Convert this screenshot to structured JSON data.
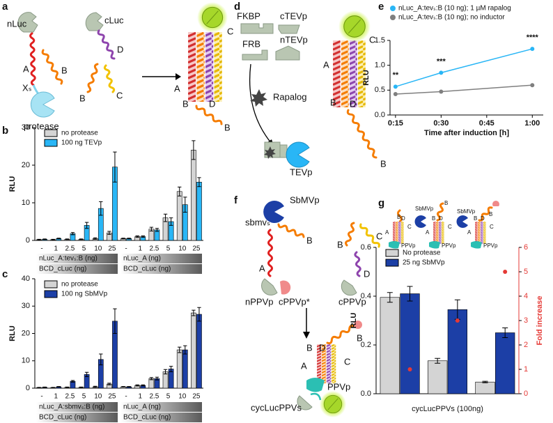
{
  "panels": [
    "a",
    "b",
    "c",
    "d",
    "e",
    "f",
    "g"
  ],
  "diagrams": {
    "a": {
      "labels": [
        "nLuc",
        "A",
        "B",
        "Xₛ",
        "protease",
        "cLuc",
        "D",
        "B",
        "C",
        "C",
        "A",
        "B",
        "D",
        "B"
      ]
    },
    "d": {
      "labels": [
        "FKBP",
        "cTEVp",
        "FRB",
        "nTEVp",
        "Rapalog",
        "TEVp",
        "C",
        "A",
        "B",
        "D",
        "B"
      ]
    },
    "f": {
      "labels": [
        "SbMVp",
        "sbmvₛ",
        "A",
        "B",
        "nPPVp",
        "cPPVp*",
        "B",
        "C",
        "D",
        "cPPVp",
        "B",
        "B",
        "D",
        "C",
        "A",
        "PPVp",
        "cycLucPPVs"
      ]
    },
    "g": {
      "labels": [
        "B",
        "D",
        "C",
        "A",
        "PPVp",
        "SbMVp",
        "B",
        "B",
        "D",
        "C",
        "A",
        "PPVp",
        "SbMVp",
        "B",
        "B",
        "D",
        "C",
        "A",
        "PPVp"
      ]
    }
  },
  "chart_data": [
    {
      "type": "bar",
      "ylabel": "RLU",
      "categories": [
        "-",
        "1",
        "2.5",
        "5",
        "10",
        "25",
        "-",
        "1",
        "2.5",
        "5",
        "10",
        "25"
      ],
      "group_labels": [
        [
          "nLuc_A:tevₛ:B (ng)",
          "BCD_cLuc (ng)"
        ],
        [
          "nLuc_A (ng)",
          "BCD_cLuc (ng)"
        ]
      ],
      "series": [
        {
          "name": "no protease",
          "color": "#d4d4d4",
          "values": [
            0.2,
            0.2,
            0.3,
            0.3,
            0.5,
            2.0,
            0.5,
            1.0,
            3.0,
            6.0,
            13.0,
            24.0
          ],
          "errors": [
            0.1,
            0.1,
            0.1,
            0.1,
            0.2,
            0.4,
            0.1,
            0.2,
            0.5,
            1.0,
            1.2,
            2.5
          ]
        },
        {
          "name": "100 ng TEVp",
          "color": "#29b6f6",
          "values": [
            0.3,
            0.5,
            1.8,
            4.0,
            8.5,
            19.5,
            0.5,
            1.0,
            2.8,
            5.0,
            9.5,
            15.5
          ],
          "errors": [
            0.1,
            0.1,
            0.3,
            0.8,
            1.8,
            4.0,
            0.1,
            0.2,
            0.4,
            1.0,
            2.0,
            1.2
          ]
        }
      ],
      "ylim": [
        0,
        30
      ],
      "yticks": [
        0,
        10,
        20,
        30
      ],
      "legend": "upper left"
    },
    {
      "type": "bar",
      "ylabel": "RLU",
      "categories": [
        "-",
        "1",
        "2.5",
        "5",
        "10",
        "25",
        "-",
        "1",
        "2.5",
        "5",
        "10",
        "25"
      ],
      "group_labels": [
        [
          "nLuc_A:sbmvₛ:B (ng)",
          "BCD_cLuc (ng)"
        ],
        [
          "nLuc_A (ng)",
          "BCD_cLuc (ng)"
        ]
      ],
      "series": [
        {
          "name": "no protease",
          "color": "#d4d4d4",
          "values": [
            0.2,
            0.2,
            0.3,
            0.3,
            0.5,
            1.5,
            0.5,
            1.0,
            3.5,
            6.0,
            14.0,
            27.5
          ],
          "errors": [
            0.1,
            0.1,
            0.1,
            0.1,
            0.2,
            0.3,
            0.1,
            0.2,
            0.4,
            0.8,
            1.0,
            1.0
          ]
        },
        {
          "name": "100 ng SbMVp",
          "color": "#1c3fa6",
          "values": [
            0.3,
            0.5,
            2.5,
            5.0,
            10.5,
            24.5,
            0.5,
            1.0,
            3.5,
            7.0,
            14.0,
            27.0
          ],
          "errors": [
            0.1,
            0.1,
            0.3,
            0.8,
            2.0,
            4.5,
            0.1,
            0.2,
            0.5,
            1.0,
            1.5,
            2.5
          ]
        }
      ],
      "ylim": [
        0,
        40
      ],
      "yticks": [
        0,
        10,
        20,
        30,
        40
      ],
      "legend": "upper left"
    },
    {
      "type": "line",
      "xlabel": "Time after induction [h]",
      "ylabel": "RLU",
      "x": [
        0.25,
        0.5,
        1.0
      ],
      "series": [
        {
          "name": "nLuc_A:tevₛ:B (10 ng); 1 µM rapalog",
          "color": "#29b6f6",
          "values": [
            0.57,
            0.85,
            1.33
          ]
        },
        {
          "name": "nLuc_A:tevₛ:B (10 ng); no inductor",
          "color": "#7f7f7f",
          "values": [
            0.42,
            0.47,
            0.6
          ]
        }
      ],
      "annotations": [
        "**",
        "***",
        "****"
      ],
      "xlim": [
        0.22,
        1.06
      ],
      "xticks": [
        {
          "value": 0.25,
          "label": "0:15"
        },
        {
          "value": 0.5,
          "label": "0:30"
        },
        {
          "value": 0.75,
          "label": "0:45"
        },
        {
          "value": 1.0,
          "label": "1:00"
        }
      ],
      "ylim": [
        0,
        1.5
      ],
      "yticks": [
        {
          "value": 0,
          "label": "0.0"
        },
        {
          "value": 0.5,
          "label": "0.5"
        },
        {
          "value": 1.0,
          "label": "1.0"
        },
        {
          "value": 1.5,
          "label": "1.5"
        }
      ],
      "legend": "top"
    },
    {
      "type": "bar",
      "xlabel": "cycLucPPVs (100ng)",
      "ylabel": "RLU",
      "y2label": "Fold increase",
      "categories": [
        null,
        null,
        null
      ],
      "series": [
        {
          "name": "No protease",
          "color": "#d4d4d4",
          "values": [
            0.395,
            0.135,
            0.048
          ],
          "errors": [
            0.02,
            0.01,
            0.003
          ]
        },
        {
          "name": "25 ng SbMVp",
          "color": "#1c3fa6",
          "values": [
            0.41,
            0.345,
            0.25
          ],
          "errors": [
            0.03,
            0.04,
            0.02
          ]
        },
        {
          "color": "#e53935",
          "axis": "y2",
          "values": [
            1.0,
            3.0,
            5.0
          ]
        }
      ],
      "ylim": [
        0,
        0.6
      ],
      "yticks": [
        {
          "value": 0,
          "label": "0.0"
        },
        {
          "value": 0.2,
          "label": "0.2"
        },
        {
          "value": 0.4,
          "label": "0.4"
        },
        {
          "value": 0.6,
          "label": "0.6"
        }
      ],
      "y2lim": [
        0,
        6
      ],
      "y2ticks": [
        0,
        1,
        2,
        3,
        4,
        5,
        6
      ],
      "legend": "upper left"
    }
  ]
}
